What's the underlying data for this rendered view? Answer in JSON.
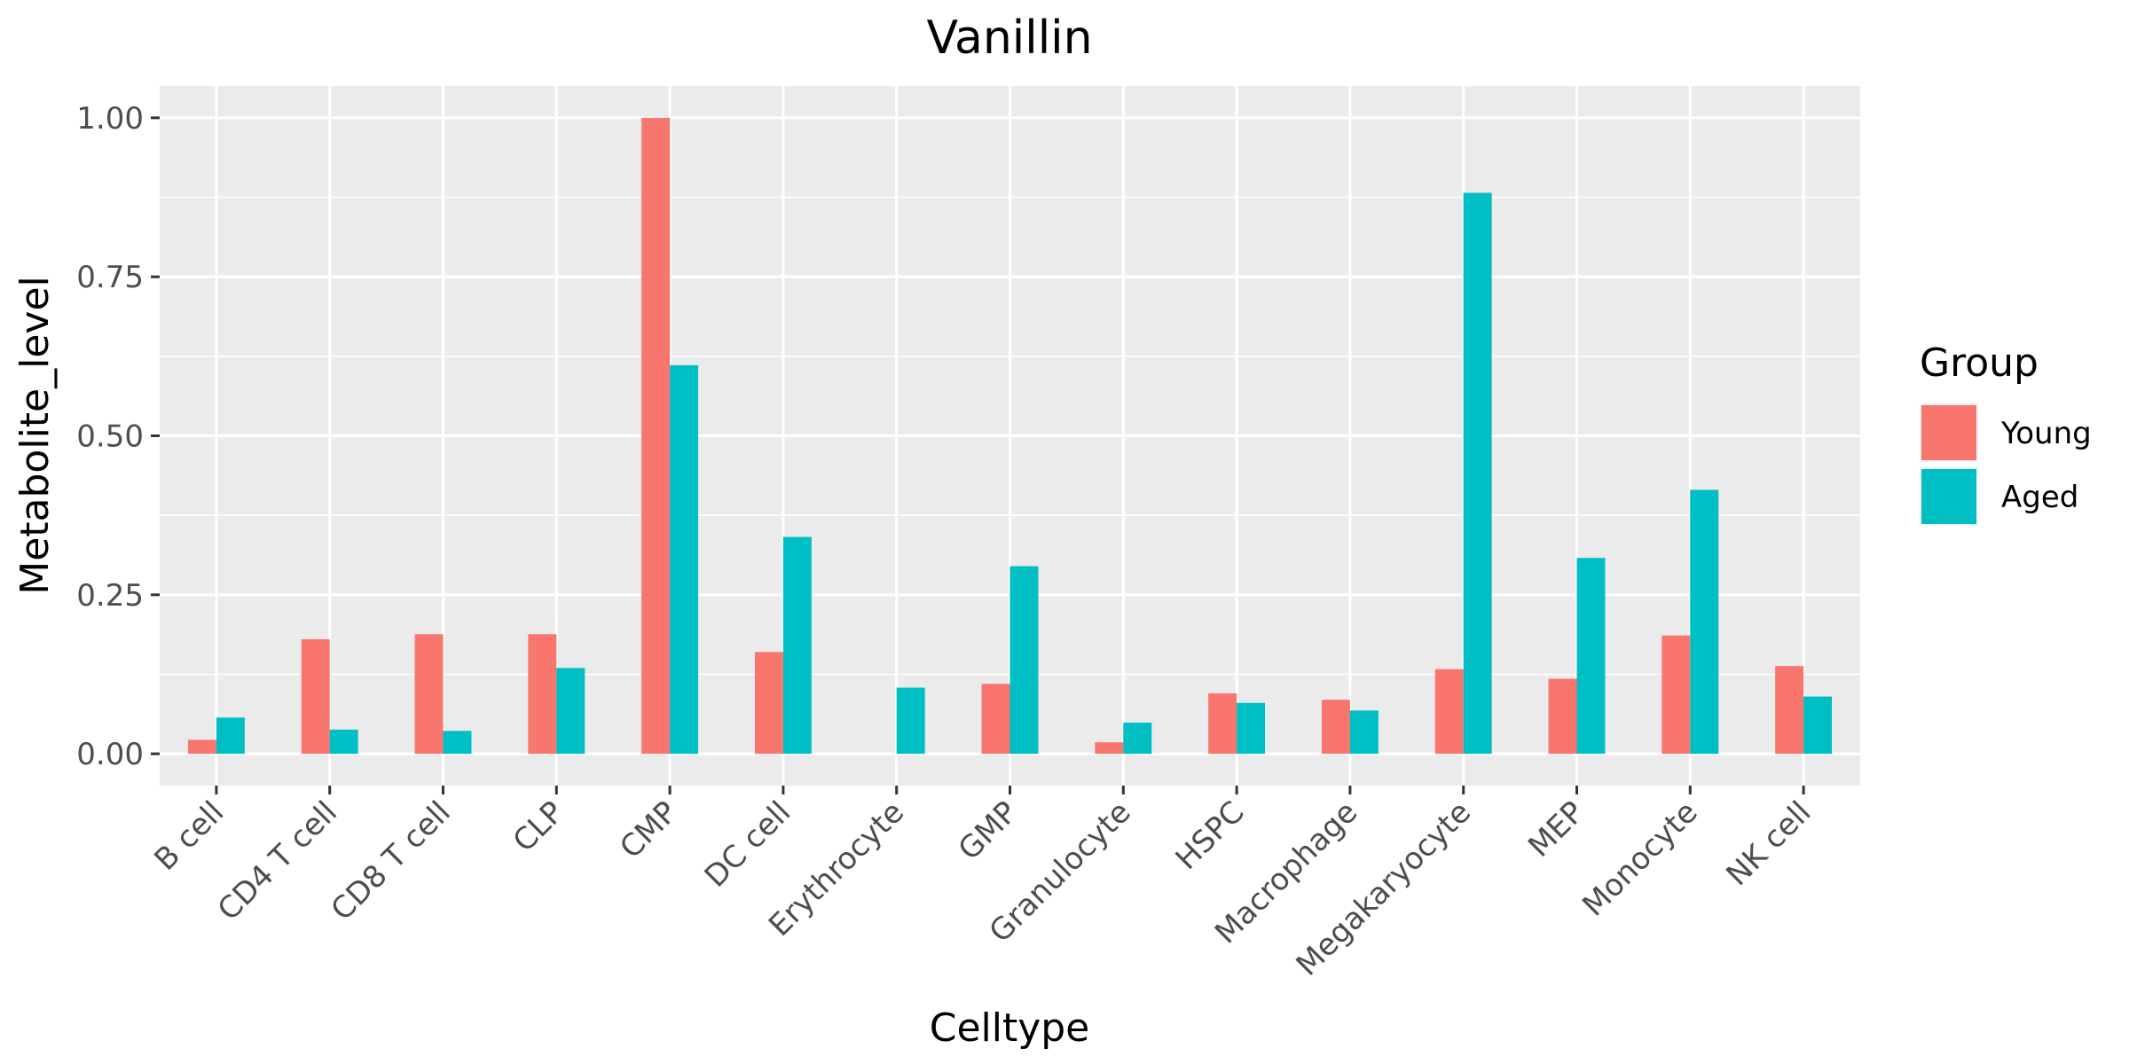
{
  "chart_data": {
    "type": "bar",
    "title": "Vanillin",
    "xlabel": "Celltype",
    "ylabel": "Metabolite_level",
    "categories": [
      "B cell",
      "CD4 T cell",
      "CD8 T cell",
      "CLP",
      "CMP",
      "DC cell",
      "Erythrocyte",
      "GMP",
      "Granulocyte",
      "HSPC",
      "Macrophage",
      "Megakaryocyte",
      "MEP",
      "Monocyte",
      "NK cell"
    ],
    "series": [
      {
        "name": "Young",
        "color": "#F8766D",
        "values": [
          0.022,
          0.18,
          0.188,
          0.188,
          1.0,
          0.16,
          0.0,
          0.11,
          0.018,
          0.095,
          0.085,
          0.133,
          0.118,
          0.186,
          0.138
        ]
      },
      {
        "name": "Aged",
        "color": "#00BFC4",
        "values": [
          0.057,
          0.038,
          0.036,
          0.135,
          0.611,
          0.341,
          0.104,
          0.295,
          0.049,
          0.08,
          0.068,
          0.882,
          0.308,
          0.415,
          0.09
        ]
      }
    ],
    "ylim": [
      -0.05,
      1.05
    ],
    "yticks": [
      0.0,
      0.25,
      0.5,
      0.75,
      1.0
    ],
    "ytick_labels": [
      "0.00",
      "0.25",
      "0.50",
      "0.75",
      "1.00"
    ],
    "grid": true,
    "legend": {
      "title": "Group",
      "position": "right"
    }
  }
}
